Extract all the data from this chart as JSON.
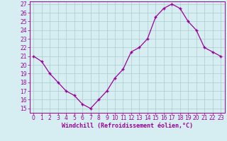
{
  "x": [
    0,
    1,
    2,
    3,
    4,
    5,
    6,
    7,
    8,
    9,
    10,
    11,
    12,
    13,
    14,
    15,
    16,
    17,
    18,
    19,
    20,
    21,
    22,
    23
  ],
  "y": [
    21,
    20.4,
    19,
    18,
    17,
    16.5,
    15.5,
    15,
    16,
    17,
    18.5,
    19.5,
    21.5,
    22,
    23,
    25.5,
    26.5,
    27,
    26.5,
    25,
    24,
    22,
    21.5,
    21
  ],
  "line_color": "#990099",
  "marker": "+",
  "marker_size": 3.5,
  "marker_lw": 1.0,
  "bg_color": "#d6eef2",
  "grid_color": "#aacccc",
  "xlabel": "Windchill (Refroidissement éolien,°C)",
  "xlabel_color": "#990099",
  "tick_color": "#990099",
  "spine_color": "#990099",
  "ylim": [
    14.5,
    27.3
  ],
  "xlim": [
    -0.5,
    23.5
  ],
  "yticks": [
    15,
    16,
    17,
    18,
    19,
    20,
    21,
    22,
    23,
    24,
    25,
    26,
    27
  ],
  "xticks": [
    0,
    1,
    2,
    3,
    4,
    5,
    6,
    7,
    8,
    9,
    10,
    11,
    12,
    13,
    14,
    15,
    16,
    17,
    18,
    19,
    20,
    21,
    22,
    23
  ],
  "tick_fontsize": 5.5,
  "xlabel_fontsize": 6.0,
  "line_width": 0.9
}
